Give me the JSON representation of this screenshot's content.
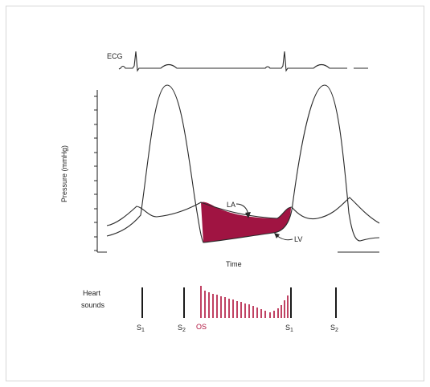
{
  "ecg": {
    "label": "ECG"
  },
  "axes": {
    "ylabel": "Pressure (mmHg)",
    "xlabel": "Time"
  },
  "curves": {
    "la_label": "LA",
    "lv_label": "LV"
  },
  "heart_sounds": {
    "label_line1": "Heart",
    "label_line2": "sounds",
    "s1_a": "S",
    "s1_a_sub": "1",
    "s2_a": "S",
    "s2_a_sub": "2",
    "os": "OS",
    "s1_b": "S",
    "s1_b_sub": "1",
    "s2_b": "S",
    "s2_b_sub": "2"
  },
  "colors": {
    "gradient_fill": "#a01442",
    "murmur": "#b0123c",
    "line": "#2a2a2a",
    "frame_border": "#d6d6d6"
  }
}
